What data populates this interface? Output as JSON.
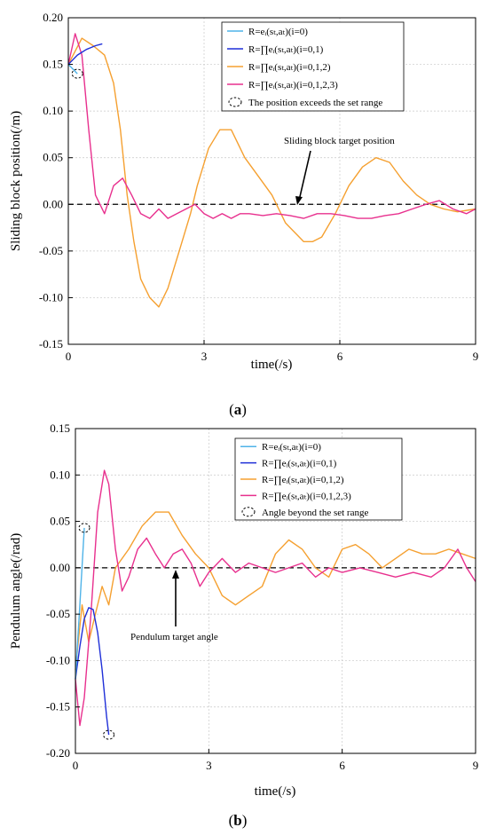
{
  "chart_data": [
    {
      "type": "line",
      "panel_label": "a",
      "xlabel": "time(/s)",
      "ylabel": "Sliding block position(/m)",
      "xlim": [
        0,
        9
      ],
      "ylim": [
        -0.15,
        0.2
      ],
      "xticks": [
        "0",
        "3",
        "6",
        "9"
      ],
      "yticks": [
        "-0.15",
        "-0.10",
        "-0.05",
        "0.00",
        "0.05",
        "0.10",
        "0.15",
        "0.20"
      ],
      "grid": true,
      "legend_position": "top-right",
      "legend": [
        {
          "label": "R=eᵢ(sₜ,aₜ)(i=0)",
          "color": "#4FB3E8",
          "kind": "line"
        },
        {
          "label": "R=∏eᵢ(sₜ,aₜ)(i=0,1)",
          "color": "#1F2FD8",
          "kind": "line"
        },
        {
          "label": "R=∏eᵢ(sₜ,aₜ)(i=0,1,2)",
          "color": "#F5A030",
          "kind": "line"
        },
        {
          "label": "R=∏eᵢ(sₜ,aₜ)(i=0,1,2,3)",
          "color": "#E8308E",
          "kind": "line"
        },
        {
          "label": "The position exceeds the set range",
          "color": "#000000",
          "kind": "dashed-circle"
        }
      ],
      "reference_line": {
        "y": 0.0,
        "label": "Sliding block target position"
      },
      "series": [
        {
          "name": "R=eᵢ(sₜ,aₜ)(i=0)",
          "color": "#4FB3E8",
          "x": [
            0,
            0.1,
            0.2
          ],
          "y": [
            0.15,
            0.145,
            0.14
          ]
        },
        {
          "name": "R=∏eᵢ(sₜ,aₜ)(i=0,1)",
          "color": "#1F2FD8",
          "x": [
            0,
            0.1,
            0.2,
            0.3,
            0.4,
            0.5,
            0.6,
            0.75
          ],
          "y": [
            0.15,
            0.155,
            0.16,
            0.163,
            0.166,
            0.168,
            0.17,
            0.172
          ]
        },
        {
          "name": "R=∏eᵢ(sₜ,aₜ)(i=0,1,2)",
          "color": "#F5A030",
          "x": [
            0,
            0.3,
            0.55,
            0.8,
            1.0,
            1.15,
            1.3,
            1.45,
            1.6,
            1.8,
            2.0,
            2.2,
            2.45,
            2.7,
            2.85,
            3.1,
            3.35,
            3.6,
            3.9,
            4.2,
            4.5,
            4.8,
            5.0,
            5.2,
            5.4,
            5.6,
            5.9,
            6.2,
            6.5,
            6.8,
            7.1,
            7.4,
            7.7,
            8.0,
            8.3,
            8.6,
            9.0
          ],
          "y": [
            0.15,
            0.178,
            0.17,
            0.16,
            0.13,
            0.08,
            0.01,
            -0.04,
            -0.08,
            -0.1,
            -0.11,
            -0.09,
            -0.05,
            -0.01,
            0.02,
            0.06,
            0.08,
            0.08,
            0.05,
            0.03,
            0.01,
            -0.02,
            -0.03,
            -0.04,
            -0.04,
            -0.035,
            -0.01,
            0.02,
            0.04,
            0.05,
            0.045,
            0.025,
            0.01,
            0.0,
            -0.005,
            -0.008,
            -0.005
          ]
        },
        {
          "name": "R=∏eᵢ(sₜ,aₜ)(i=0,1,2,3)",
          "color": "#E8308E",
          "x": [
            0,
            0.15,
            0.3,
            0.45,
            0.6,
            0.8,
            1.0,
            1.2,
            1.4,
            1.6,
            1.8,
            2.0,
            2.2,
            2.4,
            2.6,
            2.8,
            3.0,
            3.2,
            3.4,
            3.6,
            3.8,
            4.0,
            4.3,
            4.6,
            4.9,
            5.2,
            5.5,
            5.8,
            6.1,
            6.4,
            6.7,
            7.0,
            7.3,
            7.6,
            7.9,
            8.2,
            8.5,
            8.8,
            9.0
          ],
          "y": [
            0.15,
            0.183,
            0.16,
            0.08,
            0.01,
            -0.01,
            0.02,
            0.028,
            0.01,
            -0.01,
            -0.015,
            -0.005,
            -0.015,
            -0.01,
            -0.005,
            0.0,
            -0.01,
            -0.015,
            -0.01,
            -0.015,
            -0.01,
            -0.01,
            -0.012,
            -0.01,
            -0.012,
            -0.015,
            -0.01,
            -0.01,
            -0.012,
            -0.015,
            -0.015,
            -0.012,
            -0.01,
            -0.005,
            0.0,
            0.004,
            -0.005,
            -0.01,
            -0.005
          ]
        }
      ],
      "markers": [
        {
          "x": 0.2,
          "y": 0.14,
          "series": "R=eᵢ(sₜ,aₜ)(i=0)"
        }
      ]
    },
    {
      "type": "line",
      "panel_label": "b",
      "xlabel": "time(/s)",
      "ylabel": "Pendulum angle(/rad)",
      "xlim": [
        0,
        9
      ],
      "ylim": [
        -0.2,
        0.15
      ],
      "xticks": [
        "0",
        "3",
        "6",
        "9"
      ],
      "yticks": [
        "-0.20",
        "-0.15",
        "-0.10",
        "-0.05",
        "0.00",
        "0.05",
        "0.10",
        "0.15"
      ],
      "grid": true,
      "legend_position": "top-right",
      "legend": [
        {
          "label": "R=eᵢ(sₜ,aₜ)(i=0)",
          "color": "#4FB3E8",
          "kind": "line"
        },
        {
          "label": "R=∏eᵢ(sₜ,aₜ)(i=0,1)",
          "color": "#1F2FD8",
          "kind": "line"
        },
        {
          "label": "R=∏eᵢ(sₜ,aₜ)(i=0,1,2)",
          "color": "#F5A030",
          "kind": "line"
        },
        {
          "label": "R=∏eᵢ(sₜ,aₜ)(i=0,1,2,3)",
          "color": "#E8308E",
          "kind": "line"
        },
        {
          "label": "Angle beyond the set range",
          "color": "#000000",
          "kind": "dashed-circle"
        }
      ],
      "reference_line": {
        "y": 0.0,
        "label": "Pendulum target angle"
      },
      "series": [
        {
          "name": "R=eᵢ(sₜ,aₜ)(i=0)",
          "color": "#4FB3E8",
          "x": [
            0,
            0.1,
            0.2
          ],
          "y": [
            -0.12,
            -0.04,
            0.043
          ]
        },
        {
          "name": "R=∏eᵢ(sₜ,aₜ)(i=0,1)",
          "color": "#1F2FD8",
          "x": [
            0,
            0.1,
            0.2,
            0.3,
            0.4,
            0.5,
            0.6,
            0.7,
            0.75
          ],
          "y": [
            -0.12,
            -0.085,
            -0.055,
            -0.043,
            -0.045,
            -0.07,
            -0.11,
            -0.16,
            -0.18
          ]
        },
        {
          "name": "R=∏eᵢ(sₜ,aₜ)(i=0,1,2)",
          "color": "#F5A030",
          "x": [
            0,
            0.15,
            0.3,
            0.45,
            0.6,
            0.75,
            0.9,
            1.2,
            1.5,
            1.8,
            2.1,
            2.4,
            2.7,
            3.0,
            3.3,
            3.6,
            3.9,
            4.2,
            4.5,
            4.8,
            5.1,
            5.4,
            5.7,
            6.0,
            6.3,
            6.6,
            6.9,
            7.2,
            7.5,
            7.8,
            8.1,
            8.4,
            8.7,
            9.0
          ],
          "y": [
            -0.11,
            -0.04,
            -0.08,
            -0.05,
            -0.02,
            -0.04,
            0.0,
            0.02,
            0.045,
            0.06,
            0.06,
            0.035,
            0.015,
            0.0,
            -0.03,
            -0.04,
            -0.03,
            -0.02,
            0.015,
            0.03,
            0.02,
            0.0,
            -0.01,
            0.02,
            0.025,
            0.015,
            0.0,
            0.01,
            0.02,
            0.015,
            0.015,
            0.02,
            0.015,
            0.01
          ]
        },
        {
          "name": "R=∏eᵢ(sₜ,aₜ)(i=0,1,2,3)",
          "color": "#E8308E",
          "x": [
            0,
            0.1,
            0.2,
            0.35,
            0.5,
            0.65,
            0.75,
            0.9,
            1.05,
            1.2,
            1.4,
            1.6,
            1.8,
            2.0,
            2.2,
            2.4,
            2.6,
            2.8,
            3.0,
            3.3,
            3.6,
            3.9,
            4.2,
            4.5,
            4.8,
            5.1,
            5.4,
            5.7,
            6.0,
            6.4,
            6.8,
            7.2,
            7.6,
            8.0,
            8.3,
            8.6,
            8.8,
            9.0
          ],
          "y": [
            -0.12,
            -0.17,
            -0.14,
            -0.05,
            0.06,
            0.105,
            0.09,
            0.02,
            -0.025,
            -0.01,
            0.02,
            0.032,
            0.015,
            0.0,
            0.015,
            0.02,
            0.005,
            -0.02,
            -0.005,
            0.01,
            -0.005,
            0.005,
            0.0,
            -0.005,
            0.0,
            0.005,
            -0.01,
            0.0,
            -0.005,
            0.0,
            -0.005,
            -0.01,
            -0.005,
            -0.01,
            0.0,
            0.02,
            0.0,
            -0.015
          ]
        }
      ],
      "markers": [
        {
          "x": 0.2,
          "y": 0.043,
          "series": "R=eᵢ(sₜ,aₜ)(i=0)"
        },
        {
          "x": 0.75,
          "y": -0.18,
          "series": "R=∏eᵢ(sₜ,aₜ)(i=0,1)"
        }
      ]
    }
  ]
}
